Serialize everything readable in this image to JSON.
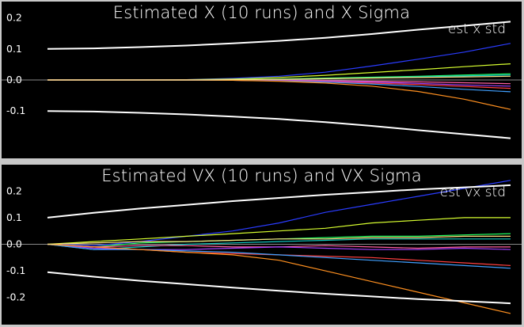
{
  "chart_data": [
    {
      "type": "line",
      "title": "Estimated X (10 runs) and X Sigma",
      "legend": "est x std",
      "legend_placement": "top-right",
      "ylim": [
        -0.24,
        0.24
      ],
      "xlim": [
        0,
        100
      ],
      "y_ticks": [
        "0.2",
        "0.1",
        "0.0",
        "-0.1"
      ],
      "y_tick_values": [
        0.2,
        0.1,
        0.0,
        -0.1
      ],
      "grid": false,
      "colors": {
        "background": "#000000",
        "zero_line": "#888888",
        "sigma": "#ffffff"
      },
      "x": [
        0,
        10,
        20,
        30,
        40,
        50,
        60,
        70,
        80,
        90,
        100
      ],
      "sigma_upper": {
        "name": "est x std",
        "values": [
          0.1,
          0.102,
          0.106,
          0.111,
          0.118,
          0.126,
          0.136,
          0.148,
          0.162,
          0.175,
          0.188
        ]
      },
      "sigma_lower": {
        "values": [
          -0.1,
          -0.102,
          -0.106,
          -0.111,
          -0.118,
          -0.126,
          -0.136,
          -0.148,
          -0.162,
          -0.175,
          -0.188
        ]
      },
      "series": [
        {
          "color": "#2a3cff",
          "values": [
            0,
            0,
            0,
            0.001,
            0.005,
            0.012,
            0.025,
            0.045,
            0.067,
            0.09,
            0.118
          ]
        },
        {
          "color": "#d8ff30",
          "values": [
            0,
            0,
            0,
            0.001,
            0.003,
            0.008,
            0.015,
            0.024,
            0.033,
            0.043,
            0.052
          ]
        },
        {
          "color": "#20ff60",
          "values": [
            0,
            0,
            0,
            0,
            0.001,
            0.003,
            0.006,
            0.009,
            0.012,
            0.016,
            0.02
          ]
        },
        {
          "color": "#10c8c0",
          "values": [
            0,
            0,
            0,
            0,
            0.001,
            0.002,
            0.004,
            0.007,
            0.01,
            0.013,
            0.016
          ]
        },
        {
          "color": "#ff60a0",
          "values": [
            0,
            0,
            0,
            0,
            0,
            -0.001,
            -0.002,
            -0.004,
            -0.006,
            -0.009,
            -0.012
          ]
        },
        {
          "color": "#a040ff",
          "values": [
            0,
            0,
            0,
            0,
            -0.001,
            -0.002,
            -0.004,
            -0.007,
            -0.011,
            -0.016,
            -0.02
          ]
        },
        {
          "color": "#ff4040",
          "values": [
            0,
            0,
            0,
            0,
            -0.001,
            -0.003,
            -0.006,
            -0.01,
            -0.015,
            -0.021,
            -0.027
          ]
        },
        {
          "color": "#40a0ff",
          "values": [
            0,
            0,
            0,
            0,
            -0.001,
            -0.003,
            -0.007,
            -0.013,
            -0.021,
            -0.03,
            -0.038
          ]
        },
        {
          "color": "#ff9020",
          "values": [
            0,
            0,
            0,
            0,
            -0.001,
            -0.004,
            -0.01,
            -0.02,
            -0.037,
            -0.062,
            -0.095
          ]
        },
        {
          "color": "#ffe080",
          "values": [
            0,
            0,
            0,
            0,
            0.001,
            0.002,
            0.004,
            0.006,
            0.008,
            0.01,
            0.012
          ]
        }
      ]
    },
    {
      "type": "line",
      "title": "Estimated VX (10 runs) and VX Sigma",
      "legend": "est vx std",
      "legend_placement": "top-right",
      "ylim": [
        -0.29,
        0.29
      ],
      "xlim": [
        0,
        100
      ],
      "y_ticks": [
        "0.2",
        "0.1",
        "0.0",
        "-0.1",
        "-0.2"
      ],
      "y_tick_values": [
        0.2,
        0.1,
        0.0,
        -0.1,
        -0.2
      ],
      "grid": false,
      "colors": {
        "background": "#000000",
        "zero_line": "#888888",
        "sigma": "#ffffff"
      },
      "x": [
        0,
        10,
        20,
        30,
        40,
        50,
        60,
        70,
        80,
        90,
        100
      ],
      "sigma_upper": {
        "name": "est vx std",
        "values": [
          0.1,
          0.118,
          0.134,
          0.148,
          0.162,
          0.174,
          0.186,
          0.196,
          0.206,
          0.214,
          0.222
        ]
      },
      "sigma_lower": {
        "values": [
          -0.105,
          -0.122,
          -0.137,
          -0.15,
          -0.163,
          -0.175,
          -0.186,
          -0.196,
          -0.206,
          -0.214,
          -0.222
        ]
      },
      "series": [
        {
          "color": "#2a3cff",
          "values": [
            0,
            -0.005,
            0.01,
            0.03,
            0.05,
            0.08,
            0.12,
            0.15,
            0.18,
            0.21,
            0.24
          ]
        },
        {
          "color": "#d8ff30",
          "values": [
            0,
            0.01,
            0.02,
            0.03,
            0.04,
            0.05,
            0.06,
            0.08,
            0.09,
            0.1,
            0.1
          ]
        },
        {
          "color": "#20ff60",
          "values": [
            0,
            -0.01,
            0.005,
            0.01,
            0.015,
            0.02,
            0.025,
            0.03,
            0.03,
            0.035,
            0.04
          ]
        },
        {
          "color": "#10c8c0",
          "values": [
            0,
            -0.02,
            -0.01,
            0,
            0.005,
            0.01,
            0.015,
            0.02,
            0.02,
            0.02,
            0.02
          ]
        },
        {
          "color": "#ff60a0",
          "values": [
            0,
            -0.01,
            -0.005,
            -0.005,
            -0.01,
            -0.01,
            -0.005,
            -0.01,
            -0.015,
            -0.01,
            -0.01
          ]
        },
        {
          "color": "#a040ff",
          "values": [
            0,
            -0.015,
            -0.02,
            -0.02,
            -0.015,
            -0.01,
            -0.015,
            -0.02,
            -0.02,
            -0.015,
            -0.02
          ]
        },
        {
          "color": "#ff4040",
          "values": [
            0,
            -0.01,
            -0.02,
            -0.03,
            -0.035,
            -0.04,
            -0.045,
            -0.05,
            -0.06,
            -0.07,
            -0.08
          ]
        },
        {
          "color": "#40a0ff",
          "values": [
            0,
            -0.02,
            -0.02,
            -0.025,
            -0.03,
            -0.04,
            -0.05,
            -0.06,
            -0.07,
            -0.08,
            -0.09
          ]
        },
        {
          "color": "#ff9020",
          "values": [
            0,
            -0.01,
            -0.02,
            -0.03,
            -0.04,
            -0.06,
            -0.1,
            -0.14,
            -0.18,
            -0.22,
            -0.26
          ]
        },
        {
          "color": "#ffe080",
          "values": [
            0,
            0.005,
            0.01,
            0.01,
            0.015,
            0.02,
            0.02,
            0.025,
            0.025,
            0.03,
            0.03
          ]
        }
      ]
    }
  ]
}
